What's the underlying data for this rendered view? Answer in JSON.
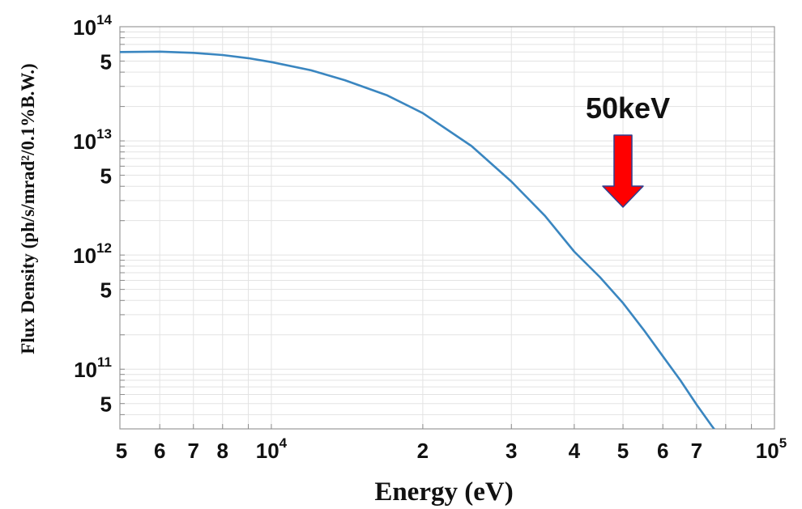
{
  "chart_data": {
    "type": "line",
    "x_scale": "log",
    "y_scale": "log",
    "xlabel": "Energy (eV)",
    "ylabel": "Flux Density (ph/s/mrad²/0.1%B.W.)",
    "xlim": [
      5000,
      100000
    ],
    "ylim": [
      30000000000,
      100000000000000
    ],
    "grid": true,
    "x_ticks": [
      {
        "value": 5000,
        "label": "5"
      },
      {
        "value": 6000,
        "label": "6"
      },
      {
        "value": 7000,
        "label": "7"
      },
      {
        "value": 8000,
        "label": "8"
      },
      {
        "value": 10000,
        "label": "10",
        "sup": "4"
      },
      {
        "value": 20000,
        "label": "2"
      },
      {
        "value": 30000,
        "label": "3"
      },
      {
        "value": 40000,
        "label": "4"
      },
      {
        "value": 50000,
        "label": "5"
      },
      {
        "value": 60000,
        "label": "6"
      },
      {
        "value": 70000,
        "label": "7"
      },
      {
        "value": 100000,
        "label": "10",
        "sup": "5"
      }
    ],
    "y_ticks": [
      {
        "value": 100000000000000,
        "label": "10",
        "sup": "14"
      },
      {
        "value": 50000000000000,
        "label": "5"
      },
      {
        "value": 10000000000000,
        "label": "10",
        "sup": "13"
      },
      {
        "value": 5000000000000,
        "label": "5"
      },
      {
        "value": 1000000000000,
        "label": "10",
        "sup": "12"
      },
      {
        "value": 500000000000,
        "label": "5"
      },
      {
        "value": 100000000000,
        "label": "10",
        "sup": "11"
      },
      {
        "value": 50000000000,
        "label": "5"
      }
    ],
    "series": [
      {
        "color": "#3a86c0",
        "x": [
          5000,
          6000,
          7000,
          8000,
          9000,
          10000,
          12000,
          14000,
          17000,
          20000,
          25000,
          30000,
          35000,
          40000,
          45000,
          50000,
          55000,
          60000,
          65000,
          70000,
          75000,
          80000
        ],
        "y": [
          60000000000000,
          60500000000000,
          59000000000000,
          56500000000000,
          53000000000000,
          49000000000000,
          41500000000000,
          34000000000000,
          25000000000000,
          17500000000000,
          9000000000000,
          4400000000000,
          2200000000000,
          1070000000000,
          640000000000,
          380000000000,
          220000000000,
          130000000000,
          80000000000,
          49000000000,
          32000000000,
          22000000000
        ]
      }
    ],
    "annotations": [
      {
        "text": "50keV",
        "x": 50000,
        "arrow_color": "#ff0000"
      }
    ]
  }
}
